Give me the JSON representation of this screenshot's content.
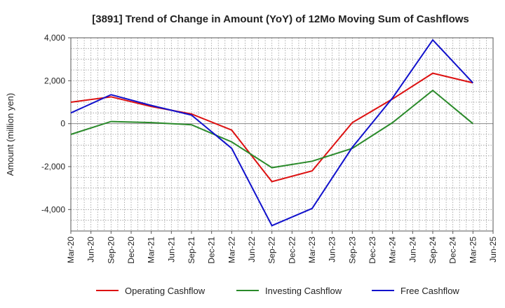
{
  "chart_data": {
    "type": "line",
    "title": "[3891]  Trend of Change in Amount (YoY) of 12Mo Moving Sum of Cashflows",
    "xlabel": "",
    "ylabel": "Amount (million yen)",
    "ylim": [
      -5000,
      4000
    ],
    "yticks": [
      4000,
      2000,
      0,
      -2000,
      -4000
    ],
    "ytick_labels": [
      "4,000",
      "2,000",
      "0",
      "-2,000",
      "-4,000"
    ],
    "categories": [
      "Mar-20",
      "Jun-20",
      "Sep-20",
      "Dec-20",
      "Mar-21",
      "Jun-21",
      "Sep-21",
      "Dec-21",
      "Mar-22",
      "Jun-22",
      "Sep-22",
      "Dec-22",
      "Mar-23",
      "Jun-23",
      "Sep-23",
      "Dec-23",
      "Mar-24",
      "Jun-24",
      "Sep-24",
      "Dec-24",
      "Mar-25",
      "Jun-25"
    ],
    "grid": true,
    "legend_position": "bottom",
    "series": [
      {
        "name": "Operating Cashflow",
        "color": "#dd1111",
        "values": [
          1000,
          null,
          1250,
          null,
          800,
          null,
          450,
          null,
          -300,
          null,
          -2700,
          null,
          -2200,
          null,
          50,
          null,
          1150,
          null,
          2350,
          null,
          1900,
          null
        ]
      },
      {
        "name": "Investing Cashflow",
        "color": "#2a8a2a",
        "values": [
          -500,
          null,
          100,
          null,
          50,
          null,
          -50,
          null,
          -850,
          null,
          -2050,
          null,
          -1750,
          null,
          -1150,
          null,
          50,
          null,
          1550,
          null,
          0,
          null
        ]
      },
      {
        "name": "Free Cashflow",
        "color": "#1111cc",
        "values": [
          500,
          null,
          1350,
          null,
          850,
          null,
          400,
          null,
          -1150,
          null,
          -4750,
          null,
          -3950,
          null,
          -1100,
          null,
          1200,
          null,
          3900,
          null,
          1900,
          null
        ]
      }
    ]
  }
}
